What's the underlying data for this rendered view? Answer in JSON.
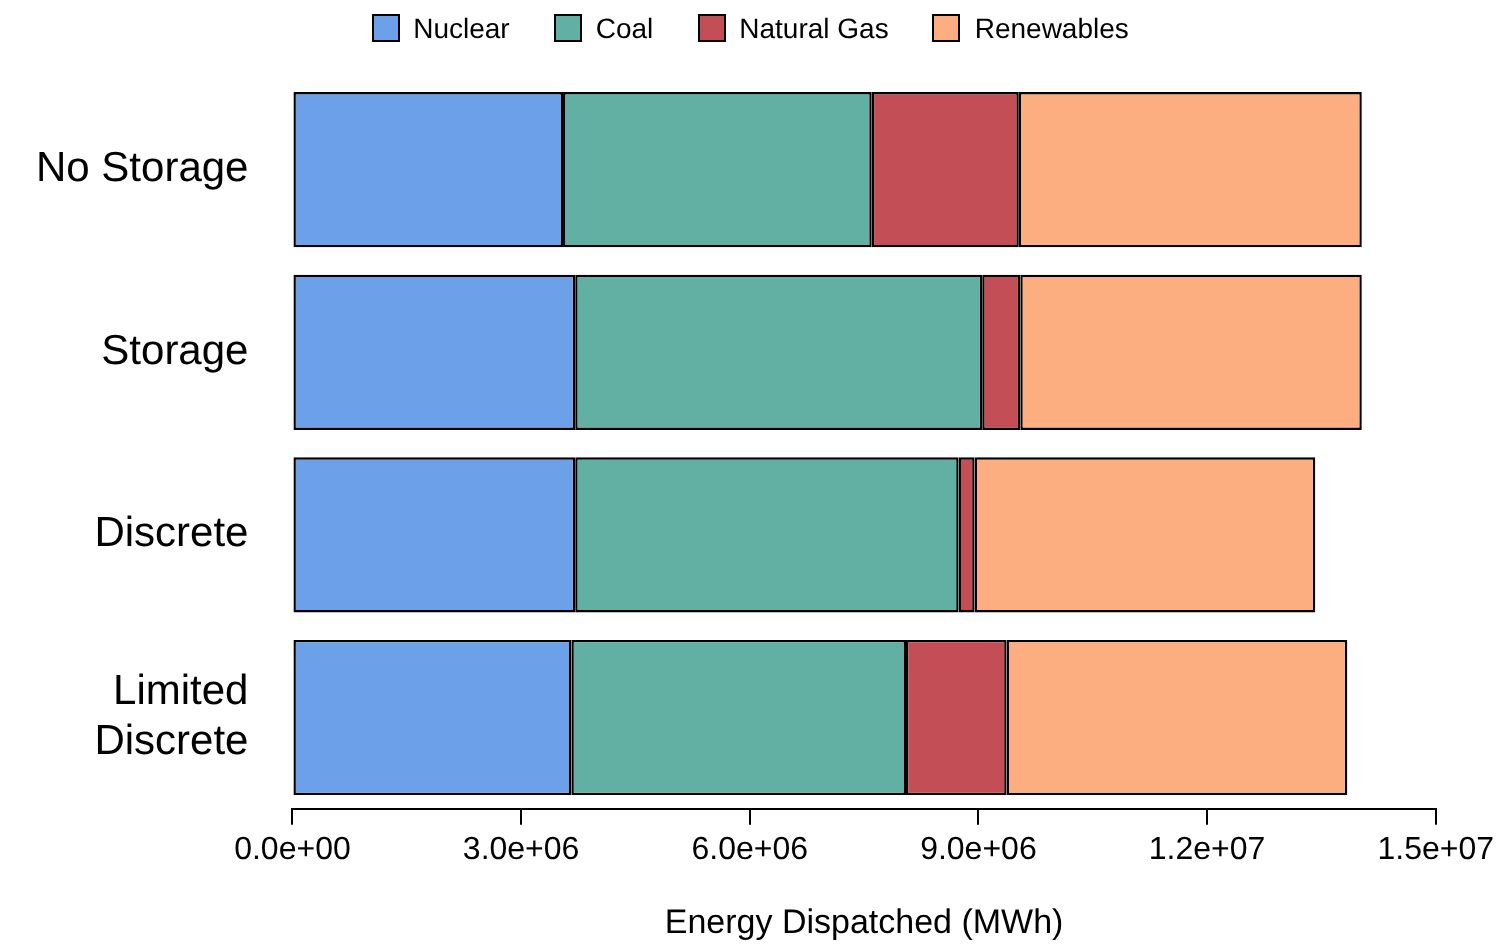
{
  "chart_data": {
    "type": "bar",
    "orientation": "horizontal",
    "stacked": true,
    "xlabel": "Energy Dispatched (MWh)",
    "categories": [
      "No Storage",
      "Storage",
      "Discrete",
      "Limited\nDiscrete"
    ],
    "series": [
      {
        "name": "Nuclear",
        "color": "#6ca0e8",
        "values": [
          3550000.0,
          3710000.0,
          3710000.0,
          3660000.0
        ]
      },
      {
        "name": "Coal",
        "color": "#62b0a4",
        "values": [
          4050000.0,
          5340000.0,
          5030000.0,
          4390000.0
        ]
      },
      {
        "name": "Natural Gas",
        "color": "#c44e55",
        "values": [
          1930000.0,
          500000.0,
          210000.0,
          1320000.0
        ]
      },
      {
        "name": "Renewables",
        "color": "#fdae80",
        "values": [
          4500000.0,
          4480000.0,
          4470000.0,
          4470000.0
        ]
      }
    ],
    "xlim": [
      0,
      15000000.0
    ],
    "xticks": [
      {
        "value": 0,
        "label": "0.0e+00"
      },
      {
        "value": 3000000.0,
        "label": "3.0e+06"
      },
      {
        "value": 6000000.0,
        "label": "6.0e+06"
      },
      {
        "value": 9000000.0,
        "label": "9.0e+06"
      },
      {
        "value": 12000000.0,
        "label": "1.2e+07"
      },
      {
        "value": 15000000.0,
        "label": "1.5e+07"
      }
    ],
    "grid": false,
    "legend": "top"
  }
}
